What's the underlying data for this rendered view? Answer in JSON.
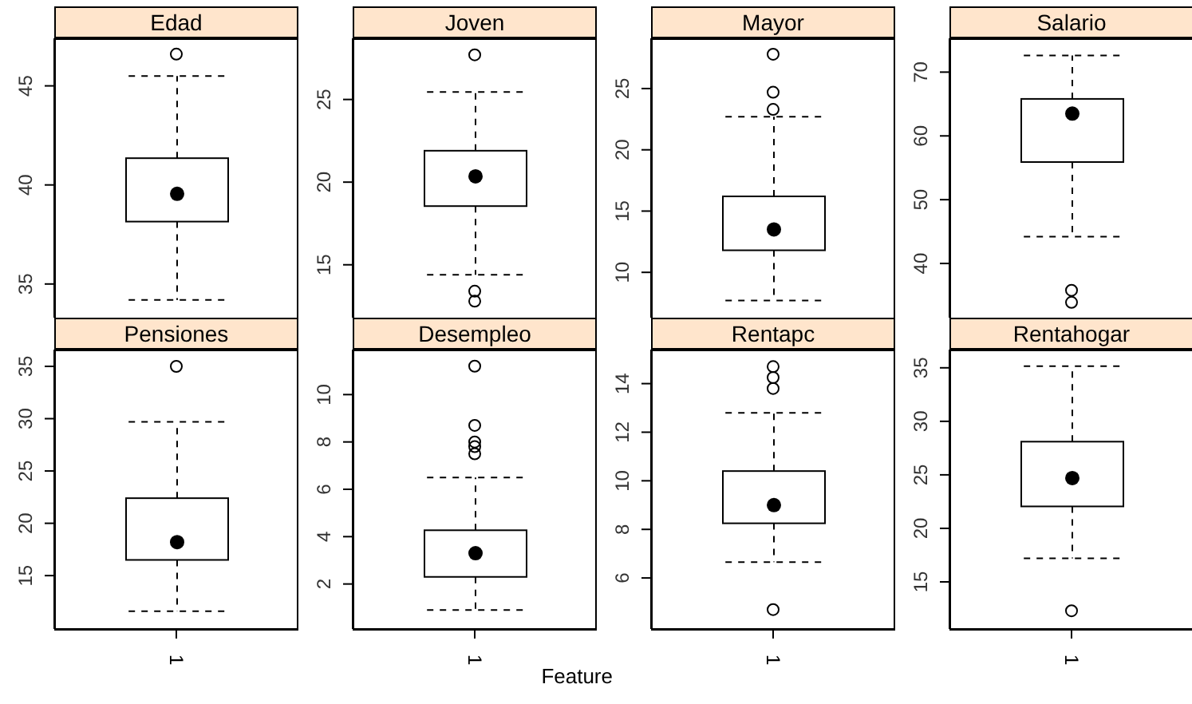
{
  "chart_data": [
    {
      "type": "box",
      "title": "Edad",
      "categories": [
        "1"
      ],
      "boxes": [
        {
          "low": 34.2,
          "q1": 38.15,
          "median": 39.55,
          "q3": 41.35,
          "high": 45.5,
          "outliers": [
            46.6
          ]
        }
      ],
      "ylim": [
        33.3,
        47.4
      ],
      "yticks": [
        35,
        40,
        45
      ],
      "tick_labels": "y"
    },
    {
      "type": "box",
      "title": "Joven",
      "categories": [
        "1"
      ],
      "boxes": [
        {
          "low": 14.4,
          "q1": 18.55,
          "median": 20.35,
          "q3": 21.9,
          "high": 25.45,
          "outliers": [
            27.7,
            13.4,
            12.8
          ]
        }
      ],
      "ylim": [
        11.8,
        28.7
      ],
      "yticks": [
        15,
        20,
        25
      ],
      "tick_labels": "y"
    },
    {
      "type": "box",
      "title": "Mayor",
      "categories": [
        "1"
      ],
      "boxes": [
        {
          "low": 7.7,
          "q1": 11.8,
          "median": 13.5,
          "q3": 16.2,
          "high": 22.7,
          "outliers": [
            27.8,
            24.7,
            23.3
          ]
        }
      ],
      "ylim": [
        6.3,
        29.1
      ],
      "yticks": [
        10,
        15,
        20,
        25
      ],
      "tick_labels": "y"
    },
    {
      "type": "box",
      "title": "Salario",
      "categories": [
        "1"
      ],
      "boxes": [
        {
          "low": 44.2,
          "q1": 55.9,
          "median": 63.5,
          "q3": 65.8,
          "high": 72.6,
          "outliers": [
            35.8,
            33.9
          ]
        }
      ],
      "ylim": [
        31.5,
        75.3
      ],
      "yticks": [
        40,
        50,
        60,
        70
      ],
      "tick_labels": "y"
    },
    {
      "type": "box",
      "title": "Pensiones",
      "categories": [
        "1"
      ],
      "boxes": [
        {
          "low": 11.6,
          "q1": 16.5,
          "median": 18.2,
          "q3": 22.4,
          "high": 29.7,
          "outliers": [
            35
          ]
        }
      ],
      "ylim": [
        9.9,
        36.6
      ],
      "yticks": [
        15,
        20,
        25,
        30,
        35
      ]
    },
    {
      "type": "box",
      "title": "Desempleo",
      "categories": [
        "1"
      ],
      "boxes": [
        {
          "low": 0.9,
          "q1": 2.3,
          "median": 3.3,
          "q3": 4.27,
          "high": 6.5,
          "outliers": [
            11.2,
            8.7,
            8.0,
            7.8,
            7.5
          ]
        }
      ],
      "ylim": [
        0.1,
        11.9
      ],
      "yticks": [
        2,
        4,
        6,
        8,
        10
      ],
      "xlabel": "Feature"
    },
    {
      "type": "box",
      "title": "Rentapc",
      "categories": [
        "1"
      ],
      "boxes": [
        {
          "low": 6.65,
          "q1": 8.25,
          "median": 9.0,
          "q3": 10.4,
          "high": 12.8,
          "outliers": [
            14.7,
            14.25,
            13.8,
            4.7
          ]
        }
      ],
      "ylim": [
        3.9,
        15.4
      ],
      "yticks": [
        6,
        8,
        10,
        12,
        14
      ]
    },
    {
      "type": "box",
      "title": "Rentahogar",
      "categories": [
        "1"
      ],
      "boxes": [
        {
          "low": 17.2,
          "q1": 22.05,
          "median": 24.7,
          "q3": 28.1,
          "high": 35.15,
          "outliers": [
            12.3
          ]
        }
      ],
      "ylim": [
        10.6,
        36.7
      ],
      "yticks": [
        15,
        20,
        25,
        30,
        35
      ]
    }
  ]
}
